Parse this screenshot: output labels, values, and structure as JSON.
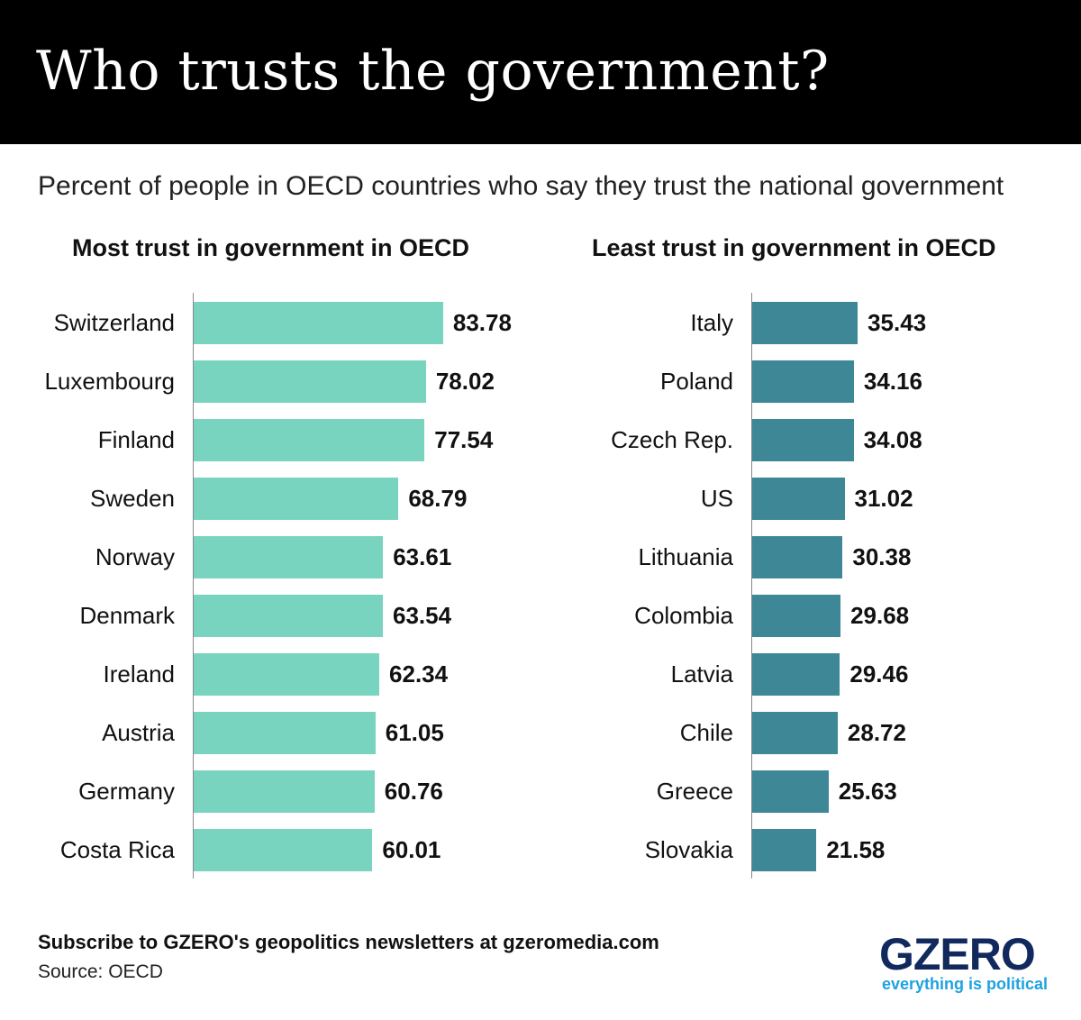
{
  "header": {
    "title": "Who trusts the government?"
  },
  "chart_data": [
    {
      "type": "bar",
      "orientation": "horizontal",
      "title": "Most trust in government in OECD",
      "subtitle": "Percent of people in OECD countries who say they trust the national government",
      "color": "#79d4bf",
      "categories": [
        "Switzerland",
        "Luxembourg",
        "Finland",
        "Sweden",
        "Norway",
        "Denmark",
        "Ireland",
        "Austria",
        "Germany",
        "Costa Rica"
      ],
      "values": [
        83.78,
        78.02,
        77.54,
        68.79,
        63.61,
        63.54,
        62.34,
        61.05,
        60.76,
        60.01
      ]
    },
    {
      "type": "bar",
      "orientation": "horizontal",
      "title": "Least trust in government in OECD",
      "color": "#3d8797",
      "categories": [
        "Italy",
        "Poland",
        "Czech Rep.",
        "US",
        "Lithuania",
        "Colombia",
        "Latvia",
        "Chile",
        "Greece",
        "Slovakia"
      ],
      "values": [
        35.43,
        34.16,
        34.08,
        31.02,
        30.38,
        29.68,
        29.46,
        28.72,
        25.63,
        21.58
      ]
    }
  ],
  "footer": {
    "subscribe": "Subscribe to GZERO's geopolitics newsletters at gzeromedia.com",
    "source": "Source: OECD",
    "logo": "GZERO",
    "tagline": "everything is political"
  }
}
